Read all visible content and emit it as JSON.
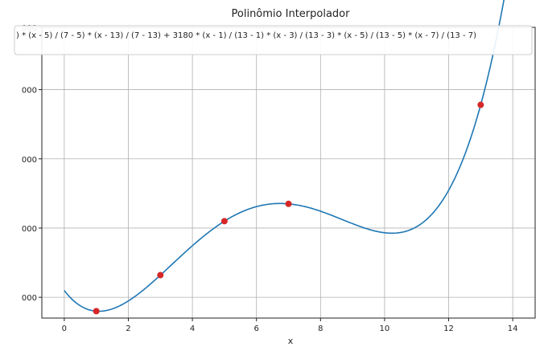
{
  "chart_data": {
    "type": "line",
    "title": "Polinômio Interpolador",
    "xlabel": "x",
    "ylabel": "",
    "xlim": [
      -0.7,
      14.7
    ],
    "ylim": [
      100,
      4300
    ],
    "xticks": [
      0,
      2,
      4,
      6,
      8,
      10,
      12,
      14
    ],
    "xtick_labels": [
      "0",
      "2",
      "4",
      "6",
      "8",
      "10",
      "12",
      "14"
    ],
    "yticks": [
      400,
      1400,
      2400,
      3400,
      4300
    ],
    "ytick_labels": [
      "000",
      "000",
      "000",
      "000",
      "000"
    ],
    "grid": true,
    "legend_position": "top",
    "legend_label": ") * (x - 5) / (7 - 5) * (x - 13) / (7 - 13) + 3180 * (x - 1) / (13 - 1) * (x - 3) / (13 - 3) * (x - 5) / (13 - 5) * (x - 7) / (13 - 7)",
    "curve_color": "#1f77b4",
    "point_color": "#d62728",
    "points": {
      "x": [
        1,
        3,
        5,
        7,
        13
      ],
      "y": [
        200,
        720,
        1500,
        1750,
        3180
      ]
    }
  }
}
